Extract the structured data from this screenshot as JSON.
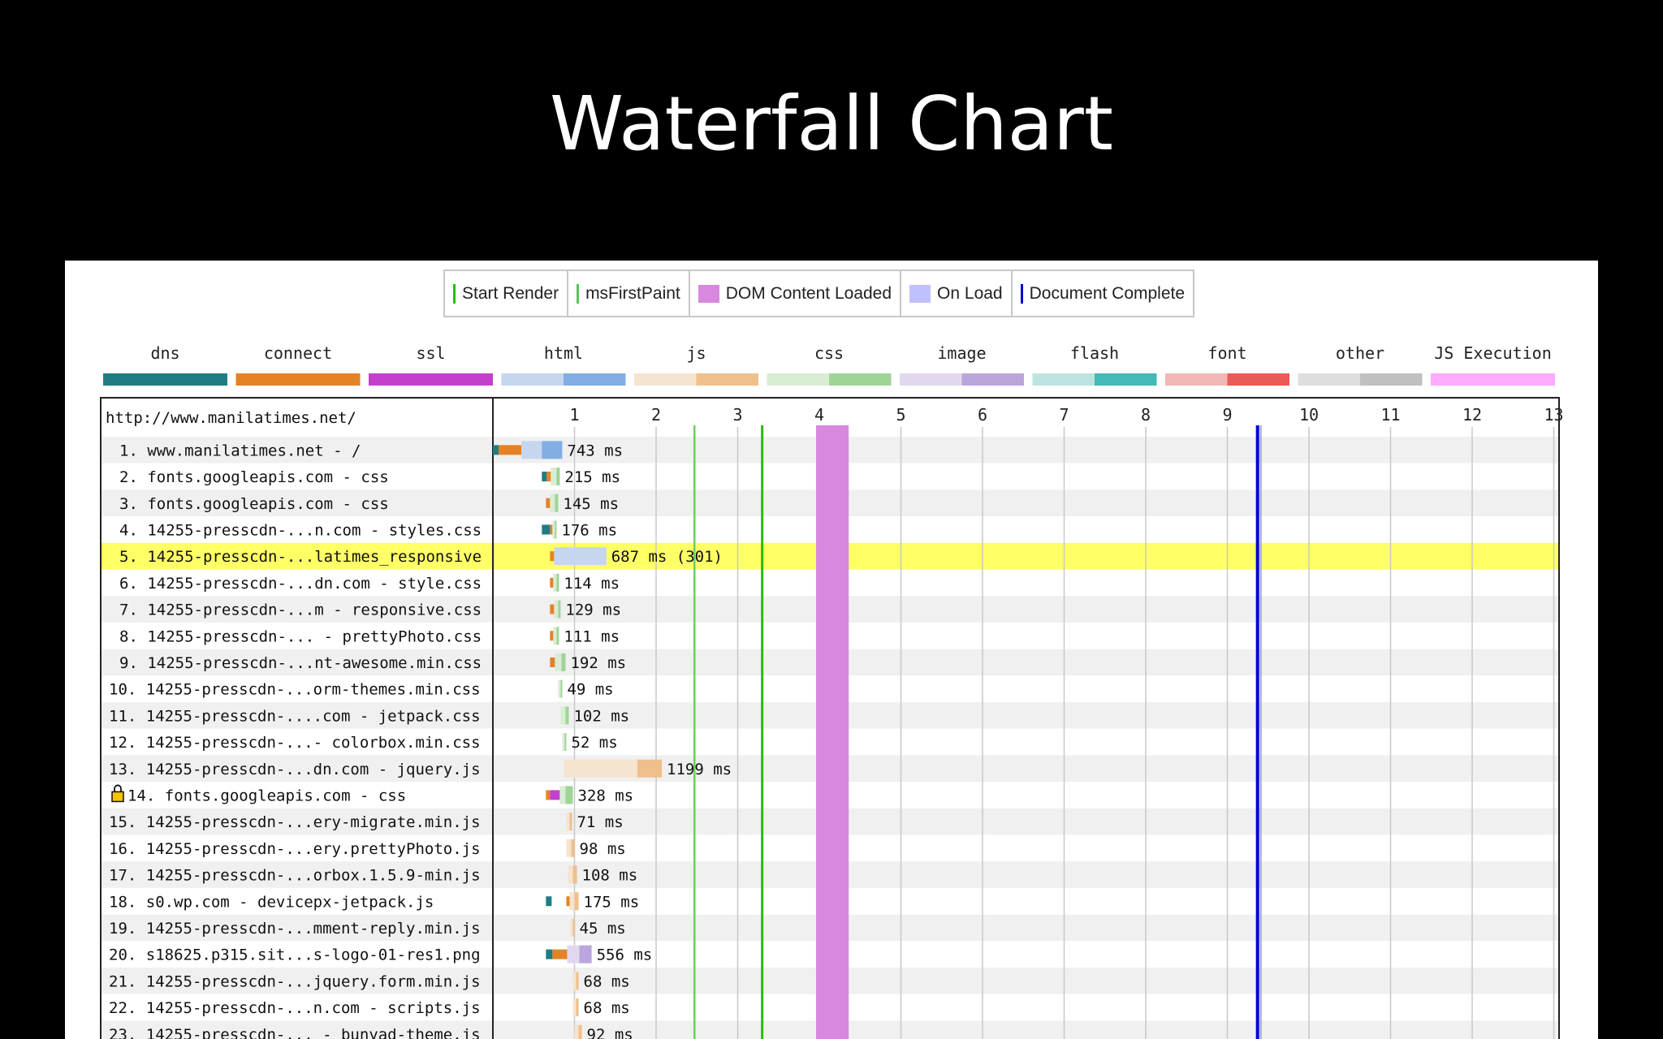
{
  "slide": {
    "title": "Waterfall Chart"
  },
  "milestones": [
    {
      "label": "Start Render",
      "color": "#28bc00",
      "style": "line"
    },
    {
      "label": "msFirstPaint",
      "color": "#4fc84f",
      "style": "line"
    },
    {
      "label": "DOM Content Loaded",
      "color": "#d888df",
      "style": "box"
    },
    {
      "label": "On Load",
      "color": "#c0c0ff",
      "style": "box"
    },
    {
      "label": "Document Complete",
      "color": "#0000cc",
      "style": "line"
    }
  ],
  "legend": [
    {
      "label": "dns",
      "colors": [
        "#1f7c83",
        "#1f7c83"
      ]
    },
    {
      "label": "connect",
      "colors": [
        "#e58226",
        "#e58226"
      ]
    },
    {
      "label": "ssl",
      "colors": [
        "#c141cd",
        "#c141cd"
      ]
    },
    {
      "label": "html",
      "colors": [
        "#c5d6ee",
        "#82aee3"
      ]
    },
    {
      "label": "js",
      "colors": [
        "#f5e4cf",
        "#efbf8c"
      ]
    },
    {
      "label": "css",
      "colors": [
        "#d9ecd4",
        "#9fd497"
      ]
    },
    {
      "label": "image",
      "colors": [
        "#e1d8ee",
        "#baa5dd"
      ]
    },
    {
      "label": "flash",
      "colors": [
        "#bde3e0",
        "#45b8b8"
      ]
    },
    {
      "label": "font",
      "colors": [
        "#f2b7b4",
        "#e85b57"
      ]
    },
    {
      "label": "other",
      "colors": [
        "#dedede",
        "#c0c0c0"
      ]
    },
    {
      "label": "JS Execution",
      "colors": [
        "#ffaaff",
        "#ffaaff"
      ]
    }
  ],
  "page_url": "http://www.manilatimes.net/",
  "chart_data": {
    "type": "waterfall",
    "x_unit": "seconds",
    "x_ticks": [
      "1",
      "2",
      "3",
      "4",
      "5",
      "6",
      "7",
      "8",
      "9",
      "10",
      "11",
      "12",
      "13"
    ],
    "markers": {
      "start_render": 3.3,
      "ms_first_paint": 2.47,
      "dom_content_loaded": [
        3.96,
        4.36
      ],
      "document_complete": 9.37
    },
    "requests": [
      {
        "label": "1. www.manilatimes.net - /",
        "duration": "743 ms",
        "type": "html",
        "start": 0,
        "dns": 0.07,
        "connect": 0.28,
        "wait": 0.25,
        "download": 0.25,
        "highlight": false,
        "secure": false
      },
      {
        "label": "2. fonts.googleapis.com - css",
        "duration": "215 ms",
        "type": "css",
        "start": 0.6,
        "dns": 0.06,
        "connect": 0.05,
        "wait": 0.07,
        "download": 0.04,
        "highlight": false,
        "secure": false
      },
      {
        "label": "3. fonts.googleapis.com - css",
        "duration": "145 ms",
        "type": "css",
        "start": 0.65,
        "dns": 0,
        "connect": 0.05,
        "wait": 0.06,
        "download": 0.04,
        "highlight": false,
        "secure": false
      },
      {
        "label": "4. 14255-presscdn-...n.com - styles.css",
        "duration": "176 ms",
        "type": "css",
        "start": 0.6,
        "dns": 0.1,
        "connect": 0.03,
        "wait": 0.03,
        "download": 0.02,
        "highlight": false,
        "secure": false
      },
      {
        "label": "5. 14255-presscdn-...latimes_responsive",
        "duration": "687 ms (301)",
        "type": "html",
        "start": 0.7,
        "dns": 0,
        "connect": 0.05,
        "wait": 0.64,
        "download": 0,
        "highlight": true,
        "secure": false
      },
      {
        "label": "6. 14255-presscdn-...dn.com - style.css",
        "duration": "114 ms",
        "type": "css",
        "start": 0.7,
        "dns": 0,
        "connect": 0.04,
        "wait": 0.04,
        "download": 0.03,
        "highlight": false,
        "secure": false
      },
      {
        "label": "7. 14255-presscdn-...m - responsive.css",
        "duration": "129 ms",
        "type": "css",
        "start": 0.7,
        "dns": 0,
        "connect": 0.05,
        "wait": 0.05,
        "download": 0.03,
        "highlight": false,
        "secure": false
      },
      {
        "label": "8. 14255-presscdn-... - prettyPhoto.css",
        "duration": "111 ms",
        "type": "css",
        "start": 0.7,
        "dns": 0,
        "connect": 0.04,
        "wait": 0.04,
        "download": 0.03,
        "highlight": false,
        "secure": false
      },
      {
        "label": "9. 14255-presscdn-...nt-awesome.min.css",
        "duration": "192 ms",
        "type": "css",
        "start": 0.7,
        "dns": 0,
        "connect": 0.06,
        "wait": 0.08,
        "download": 0.05,
        "highlight": false,
        "secure": false
      },
      {
        "label": "10. 14255-presscdn-...orm-themes.min.css",
        "duration": "49 ms",
        "type": "css",
        "start": 0.8,
        "dns": 0,
        "connect": 0,
        "wait": 0.03,
        "download": 0.02,
        "highlight": false,
        "secure": false
      },
      {
        "label": "11. 14255-presscdn-....com - jetpack.css",
        "duration": "102 ms",
        "type": "css",
        "start": 0.83,
        "dns": 0,
        "connect": 0,
        "wait": 0.06,
        "download": 0.04,
        "highlight": false,
        "secure": false
      },
      {
        "label": "12. 14255-presscdn-...- colorbox.min.css",
        "duration": "52 ms",
        "type": "css",
        "start": 0.85,
        "dns": 0,
        "connect": 0,
        "wait": 0.03,
        "download": 0.02,
        "highlight": false,
        "secure": false
      },
      {
        "label": "13. 14255-presscdn-...dn.com - jquery.js",
        "duration": "1199 ms",
        "type": "js",
        "start": 0.87,
        "dns": 0,
        "connect": 0,
        "wait": 0.9,
        "download": 0.3,
        "highlight": false,
        "secure": false
      },
      {
        "label": "14. fonts.googleapis.com - css",
        "duration": "328 ms",
        "type": "css",
        "start": 0.65,
        "dns": 0,
        "connect": 0.05,
        "ssl": 0.12,
        "wait": 0.07,
        "download": 0.09,
        "highlight": false,
        "secure": true
      },
      {
        "label": "15. 14255-presscdn-...ery-migrate.min.js",
        "duration": "71 ms",
        "type": "js",
        "start": 0.9,
        "dns": 0,
        "connect": 0,
        "wait": 0.04,
        "download": 0.03,
        "highlight": false,
        "secure": false
      },
      {
        "label": "16. 14255-presscdn-...ery.prettyPhoto.js",
        "duration": "98 ms",
        "type": "js",
        "start": 0.9,
        "dns": 0,
        "connect": 0,
        "wait": 0.06,
        "download": 0.04,
        "highlight": false,
        "secure": false
      },
      {
        "label": "17. 14255-presscdn-...orbox.1.5.9-min.js",
        "duration": "108 ms",
        "type": "js",
        "start": 0.92,
        "dns": 0,
        "connect": 0,
        "wait": 0.06,
        "download": 0.05,
        "highlight": false,
        "secure": false
      },
      {
        "label": "18. s0.wp.com - devicepx-jetpack.js",
        "duration": "175 ms",
        "type": "js",
        "start": 0.65,
        "dns": 0.07,
        "gap": 0.18,
        "connect": 0.04,
        "wait": 0.06,
        "download": 0.05,
        "highlight": false,
        "secure": false
      },
      {
        "label": "19. 14255-presscdn-...mment-reply.min.js",
        "duration": "45 ms",
        "type": "js",
        "start": 0.95,
        "dns": 0,
        "connect": 0,
        "wait": 0.03,
        "download": 0.02,
        "highlight": false,
        "secure": false
      },
      {
        "label": "20. s18625.p315.sit...s-logo-01-res1.png",
        "duration": "556 ms",
        "type": "image",
        "start": 0.65,
        "dns": 0.08,
        "connect": 0.18,
        "wait": 0.15,
        "download": 0.15,
        "highlight": false,
        "secure": false
      },
      {
        "label": "21. 14255-presscdn-...jquery.form.min.js",
        "duration": "68 ms",
        "type": "js",
        "start": 0.98,
        "dns": 0,
        "connect": 0,
        "wait": 0.04,
        "download": 0.03,
        "highlight": false,
        "secure": false
      },
      {
        "label": "22. 14255-presscdn-...n.com - scripts.js",
        "duration": "68 ms",
        "type": "js",
        "start": 0.98,
        "dns": 0,
        "connect": 0,
        "wait": 0.04,
        "download": 0.03,
        "highlight": false,
        "secure": false
      },
      {
        "label": "23. 14255-presscdn-... - bunyad-theme.js",
        "duration": "92 ms",
        "type": "js",
        "start": 1.0,
        "dns": 0,
        "connect": 0,
        "wait": 0.05,
        "download": 0.04,
        "highlight": false,
        "secure": false
      }
    ]
  }
}
